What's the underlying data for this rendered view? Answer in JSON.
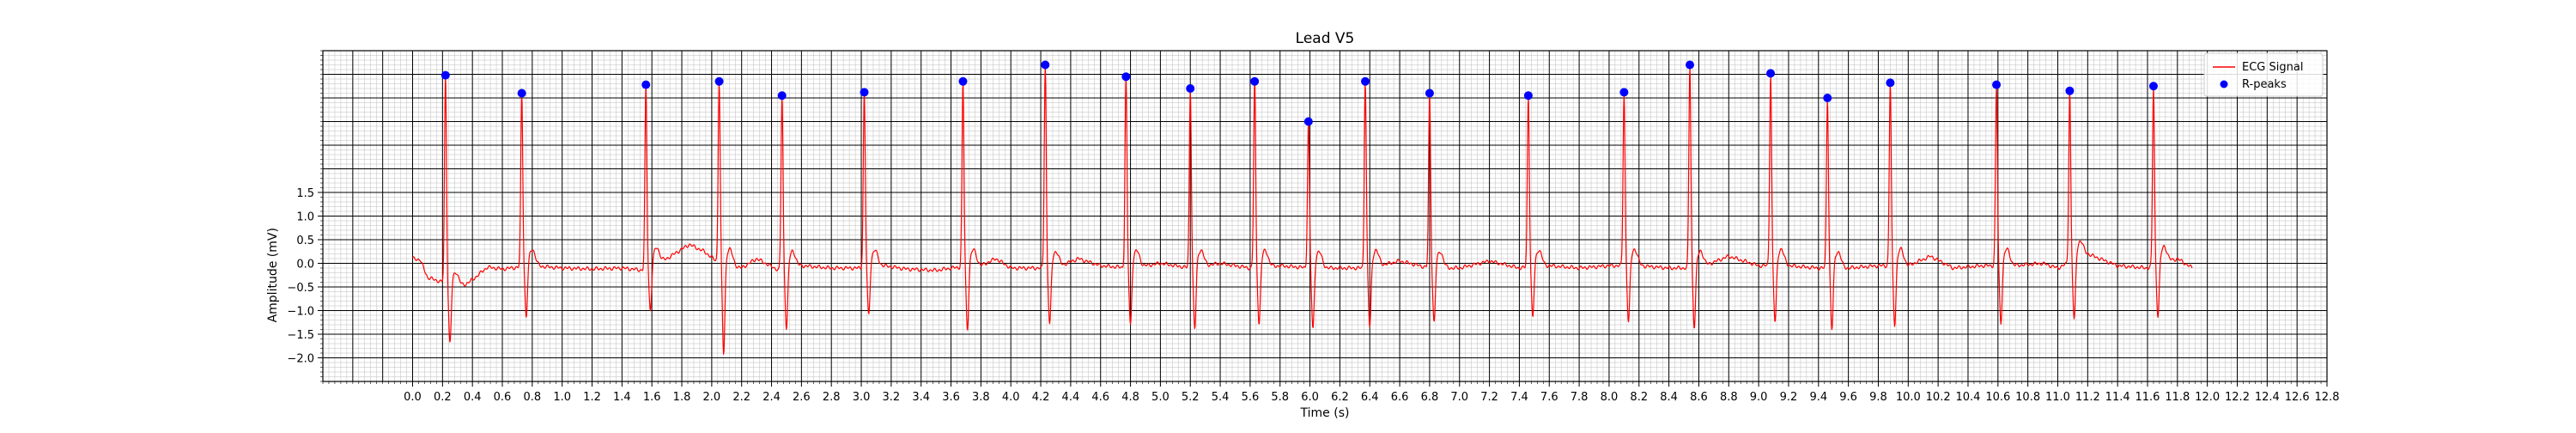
{
  "chart_data": {
    "type": "line",
    "title": "Lead V5",
    "xlabel": "Time (s)",
    "ylabel": "Amplitude (mV)",
    "xlim": [
      -0.6,
      12.8
    ],
    "ylim": [
      -2.5,
      4.5
    ],
    "x_ticks": [
      0.0,
      0.2,
      0.4,
      0.6,
      0.8,
      1.0,
      1.2,
      1.4,
      1.6,
      1.8,
      2.0,
      2.2,
      2.4,
      2.6,
      2.8,
      3.0,
      3.2,
      3.4,
      3.6,
      3.8,
      4.0,
      4.2,
      4.4,
      4.6,
      4.8,
      5.0,
      5.2,
      5.4,
      5.6,
      5.8,
      6.0,
      6.2,
      6.4,
      6.6,
      6.8,
      7.0,
      7.2,
      7.4,
      7.6,
      7.8,
      8.0,
      8.2,
      8.4,
      8.6,
      8.8,
      9.0,
      9.2,
      9.4,
      9.6,
      9.8,
      10.0,
      10.2,
      10.4,
      10.6,
      10.8,
      11.0,
      11.2,
      11.4,
      11.6,
      11.8,
      12.0,
      12.2,
      12.4,
      12.6,
      12.8
    ],
    "x_tick_labels": [
      "0.0",
      "0.2",
      "0.4",
      "0.6",
      "0.8",
      "1.0",
      "1.2",
      "1.4",
      "1.6",
      "1.8",
      "2.0",
      "2.2",
      "2.4",
      "2.6",
      "2.8",
      "3.0",
      "3.2",
      "3.4",
      "3.6",
      "3.8",
      "4.0",
      "4.2",
      "4.4",
      "4.6",
      "4.8",
      "5.0",
      "5.2",
      "5.4",
      "5.6",
      "5.8",
      "6.0",
      "6.2",
      "6.4",
      "6.6",
      "6.8",
      "7.0",
      "7.2",
      "7.4",
      "7.6",
      "7.8",
      "8.0",
      "8.2",
      "8.4",
      "8.6",
      "8.8",
      "9.0",
      "9.2",
      "9.4",
      "9.6",
      "9.8",
      "10.0",
      "10.2",
      "10.4",
      "10.6",
      "10.8",
      "11.0",
      "11.2",
      "11.4",
      "11.6",
      "11.8",
      "12.0",
      "12.2",
      "12.4",
      "12.6",
      "12.8"
    ],
    "y_ticks": [
      -2.0,
      -1.5,
      -1.0,
      -0.5,
      0.0,
      0.5,
      1.0,
      1.5
    ],
    "y_tick_labels": [
      "−2.0",
      "−1.5",
      "−1.0",
      "−0.5",
      "0.0",
      "0.5",
      "1.0",
      "1.5"
    ],
    "grid": {
      "major": true,
      "minor": true,
      "major_color": "#000000",
      "minor_color": "#bdbdbd"
    },
    "legend_position": "top-right",
    "series": [
      {
        "name": "ECG Signal",
        "color": "#ff0000",
        "baseline_points": [
          [
            0.0,
            0.1
          ],
          [
            0.05,
            0.08
          ],
          [
            0.1,
            -0.3
          ],
          [
            0.15,
            -0.35
          ],
          [
            0.2,
            -0.4
          ],
          [
            0.3,
            -0.55
          ],
          [
            0.4,
            -0.35
          ],
          [
            0.5,
            -0.08
          ],
          [
            0.6,
            -0.12
          ],
          [
            0.8,
            -0.05
          ],
          [
            1.0,
            -0.1
          ],
          [
            1.2,
            -0.12
          ],
          [
            1.4,
            -0.1
          ],
          [
            1.55,
            -0.15
          ],
          [
            1.7,
            0.1
          ],
          [
            1.85,
            0.4
          ],
          [
            1.95,
            0.25
          ],
          [
            2.05,
            0.0
          ],
          [
            2.2,
            -0.1
          ],
          [
            2.3,
            0.1
          ],
          [
            2.45,
            -0.15
          ],
          [
            2.6,
            -0.05
          ],
          [
            2.8,
            -0.1
          ],
          [
            3.0,
            -0.1
          ],
          [
            3.15,
            -0.05
          ],
          [
            3.3,
            -0.12
          ],
          [
            3.5,
            -0.15
          ],
          [
            3.6,
            -0.1
          ],
          [
            3.8,
            -0.05
          ],
          [
            3.9,
            0.1
          ],
          [
            4.0,
            -0.1
          ],
          [
            4.3,
            -0.1
          ],
          [
            4.45,
            0.1
          ],
          [
            4.6,
            -0.05
          ],
          [
            4.8,
            -0.1
          ],
          [
            5.0,
            0.0
          ],
          [
            5.2,
            -0.1
          ],
          [
            5.4,
            0.0
          ],
          [
            5.6,
            -0.1
          ],
          [
            5.8,
            -0.05
          ],
          [
            6.0,
            -0.1
          ],
          [
            6.2,
            -0.1
          ],
          [
            6.4,
            -0.1
          ],
          [
            6.6,
            0.05
          ],
          [
            6.8,
            -0.1
          ],
          [
            7.0,
            -0.1
          ],
          [
            7.2,
            0.05
          ],
          [
            7.4,
            -0.1
          ],
          [
            7.6,
            -0.05
          ],
          [
            7.8,
            -0.1
          ],
          [
            8.0,
            -0.05
          ],
          [
            8.2,
            -0.05
          ],
          [
            8.4,
            -0.1
          ],
          [
            8.6,
            -0.1
          ],
          [
            8.8,
            0.15
          ],
          [
            9.0,
            -0.05
          ],
          [
            9.2,
            -0.05
          ],
          [
            9.4,
            -0.1
          ],
          [
            9.6,
            -0.1
          ],
          [
            9.8,
            -0.05
          ],
          [
            10.0,
            -0.05
          ],
          [
            10.15,
            0.15
          ],
          [
            10.3,
            -0.1
          ],
          [
            10.5,
            -0.05
          ],
          [
            10.7,
            -0.05
          ],
          [
            10.9,
            0.0
          ],
          [
            11.0,
            -0.1
          ],
          [
            11.2,
            0.2
          ],
          [
            11.4,
            -0.05
          ],
          [
            11.6,
            -0.1
          ],
          [
            11.8,
            0.1
          ],
          [
            11.9,
            -0.1
          ]
        ],
        "beats": [
          {
            "t": 0.22,
            "peak": 3.98,
            "trough": -1.7
          },
          {
            "t": 0.73,
            "peak": 3.6,
            "trough": -1.2
          },
          {
            "t": 1.56,
            "peak": 3.78,
            "trough": -1.1
          },
          {
            "t": 2.05,
            "peak": 3.85,
            "trough": -1.95
          },
          {
            "t": 2.47,
            "peak": 3.55,
            "trough": -1.45
          },
          {
            "t": 3.02,
            "peak": 3.62,
            "trough": -1.15
          },
          {
            "t": 3.68,
            "peak": 3.85,
            "trough": -1.45
          },
          {
            "t": 4.23,
            "peak": 4.2,
            "trough": -1.35
          },
          {
            "t": 4.77,
            "peak": 3.95,
            "trough": -1.35
          },
          {
            "t": 5.2,
            "peak": 3.7,
            "trough": -1.45
          },
          {
            "t": 5.63,
            "peak": 3.85,
            "trough": -1.35
          },
          {
            "t": 5.99,
            "peak": 3.0,
            "trough": -1.45
          },
          {
            "t": 6.37,
            "peak": 3.85,
            "trough": -1.4
          },
          {
            "t": 6.8,
            "peak": 3.6,
            "trough": -1.3
          },
          {
            "t": 7.46,
            "peak": 3.55,
            "trough": -1.2
          },
          {
            "t": 8.1,
            "peak": 3.62,
            "trough": -1.3
          },
          {
            "t": 8.54,
            "peak": 4.2,
            "trough": -1.4
          },
          {
            "t": 9.08,
            "peak": 4.02,
            "trough": -1.3
          },
          {
            "t": 9.46,
            "peak": 3.5,
            "trough": -1.45
          },
          {
            "t": 9.88,
            "peak": 3.82,
            "trough": -1.35
          },
          {
            "t": 10.59,
            "peak": 3.78,
            "trough": -1.3
          },
          {
            "t": 11.08,
            "peak": 3.65,
            "trough": -1.3
          },
          {
            "t": 11.64,
            "peak": 3.75,
            "trough": -1.2
          }
        ]
      },
      {
        "name": "R-peaks",
        "color": "#0000ff",
        "marker": "circle",
        "points": [
          [
            0.22,
            3.98
          ],
          [
            0.73,
            3.6
          ],
          [
            1.56,
            3.78
          ],
          [
            2.05,
            3.85
          ],
          [
            2.47,
            3.55
          ],
          [
            3.02,
            3.62
          ],
          [
            3.68,
            3.85
          ],
          [
            4.23,
            4.2
          ],
          [
            4.77,
            3.95
          ],
          [
            5.2,
            3.7
          ],
          [
            5.63,
            3.85
          ],
          [
            5.99,
            3.0
          ],
          [
            6.37,
            3.85
          ],
          [
            6.8,
            3.6
          ],
          [
            7.46,
            3.55
          ],
          [
            8.1,
            3.62
          ],
          [
            8.54,
            4.2
          ],
          [
            9.08,
            4.02
          ],
          [
            9.46,
            3.5
          ],
          [
            9.88,
            3.82
          ],
          [
            10.59,
            3.78
          ],
          [
            11.08,
            3.65
          ],
          [
            11.64,
            3.75
          ]
        ]
      }
    ]
  }
}
